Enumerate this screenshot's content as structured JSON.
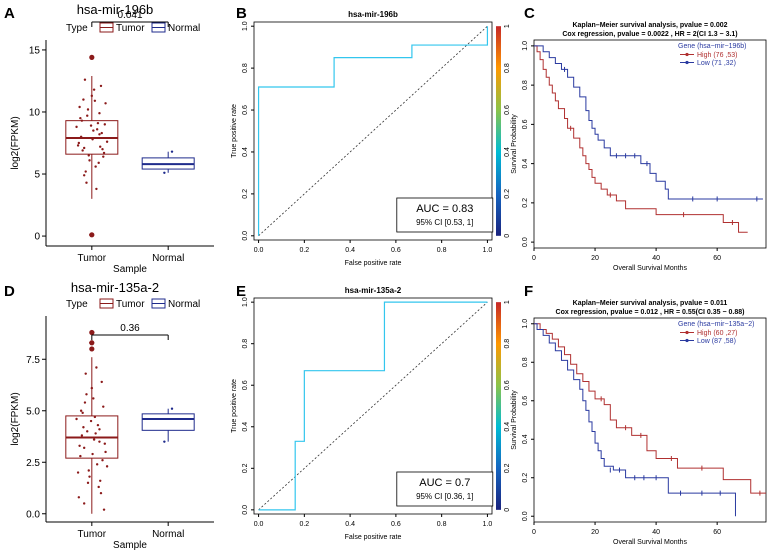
{
  "panel_labels": [
    "A",
    "B",
    "C",
    "D",
    "E",
    "F"
  ],
  "colors": {
    "tumor": "#8b1a1a",
    "normal": "#1f2b8c",
    "km_high": "#b03030",
    "km_low": "#2a3aa0",
    "roc": "#33c6ee",
    "diag": "#333333"
  },
  "chart_data": [
    {
      "panel": "A",
      "type": "box",
      "title": "hsa-mir-196b",
      "legend_title": "Type",
      "legend": [
        "Tumor",
        "Normal"
      ],
      "xlabel": "Sample",
      "ylabel": "log2(FPKM)",
      "categories": [
        "Tumor",
        "Normal"
      ],
      "ylim": [
        -0.8,
        15.8
      ],
      "yticks": [
        0,
        5,
        10,
        15
      ],
      "pvalue": "0.041",
      "boxes": [
        {
          "name": "Tumor",
          "q1": 6.6,
          "median": 7.9,
          "q3": 9.3,
          "whisker_low": 3.0,
          "whisker_high": 12.9,
          "outliers": [
            0.1,
            14.4
          ],
          "points": [
            [
              0.9,
              7.1
            ],
            [
              1.1,
              8.2
            ],
            [
              0.85,
              9.5
            ],
            [
              1.15,
              6.4
            ],
            [
              0.95,
              10.2
            ],
            [
              1.05,
              5.6
            ],
            [
              0.8,
              8.8
            ],
            [
              1.2,
              7.6
            ],
            [
              1.0,
              11.3
            ],
            [
              0.9,
              4.9
            ],
            [
              1.1,
              9.9
            ],
            [
              0.88,
              6.9
            ],
            [
              1.12,
              12.1
            ],
            [
              1.02,
              8.5
            ],
            [
              0.82,
              7.3
            ],
            [
              1.18,
              10.7
            ],
            [
              0.92,
              5.2
            ],
            [
              1.08,
              9.1
            ],
            [
              0.97,
              6.1
            ],
            [
              1.03,
              11.8
            ],
            [
              0.86,
              8.0
            ],
            [
              1.14,
              7.0
            ],
            [
              0.94,
              9.7
            ],
            [
              1.06,
              3.8
            ],
            [
              0.84,
              10.4
            ],
            [
              1.16,
              6.7
            ],
            [
              0.99,
              8.9
            ],
            [
              1.01,
              7.8
            ],
            [
              0.91,
              12.6
            ],
            [
              1.09,
              5.9
            ],
            [
              0.87,
              9.3
            ],
            [
              1.13,
              8.3
            ],
            [
              0.96,
              6.5
            ],
            [
              1.04,
              10.9
            ],
            [
              0.83,
              7.5
            ],
            [
              1.17,
              9.0
            ],
            [
              0.93,
              4.3
            ],
            [
              1.07,
              8.6
            ],
            [
              0.89,
              11.0
            ],
            [
              1.11,
              7.2
            ],
            [
              0.98,
              0.1
            ],
            [
              1.0,
              14.4
            ]
          ]
        },
        {
          "name": "Normal",
          "q1": 5.4,
          "median": 5.8,
          "q3": 6.3,
          "whisker_low": 5.1,
          "whisker_high": 6.8,
          "outliers": [],
          "points": [
            [
              1.95,
              5.1
            ],
            [
              2.05,
              6.8
            ]
          ]
        }
      ]
    },
    {
      "panel": "B",
      "type": "roc",
      "title": "hsa-mir-196b",
      "xlabel": "False positive rate",
      "ylabel": "True positive rate",
      "xticks": [
        0.0,
        0.2,
        0.4,
        0.6,
        0.8,
        1.0
      ],
      "yticks": [
        0.0,
        0.2,
        0.4,
        0.6,
        0.8,
        1.0
      ],
      "colorbar_ticks": [
        0,
        0.2,
        0.4,
        0.6,
        0.8,
        1
      ],
      "auc_text": "AUC = 0.83",
      "ci_text": "95% CI [0.53, 1]",
      "curve": [
        [
          0,
          0
        ],
        [
          0,
          0.71
        ],
        [
          0.33,
          0.71
        ],
        [
          0.33,
          0.85
        ],
        [
          0.67,
          0.85
        ],
        [
          0.67,
          0.91
        ],
        [
          1.0,
          0.91
        ],
        [
          1.0,
          1.0
        ]
      ]
    },
    {
      "panel": "C",
      "type": "km",
      "title": "Kaplan–Meier survival analysis,  pvalue =  0.002",
      "subtitle": "Cox regression,  pvalue =  0.0022 , HR =  2(CI 1.3 − 3.1)",
      "xlabel": "Overall Survival Months",
      "ylabel": "Survival Probability",
      "xlim": [
        0,
        76
      ],
      "xticks": [
        0,
        20,
        40,
        60
      ],
      "yticks": [
        0.0,
        0.2,
        0.4,
        0.6,
        0.8,
        1.0
      ],
      "legend_title": "Gene (hsa−mir−196b)",
      "series": [
        {
          "name": "High (76 ,53)",
          "color_key": "km_high",
          "steps": [
            [
              0,
              1.0
            ],
            [
              1,
              0.97
            ],
            [
              2,
              0.93
            ],
            [
              3,
              0.88
            ],
            [
              4,
              0.84
            ],
            [
              5,
              0.8
            ],
            [
              6,
              0.76
            ],
            [
              7,
              0.72
            ],
            [
              8,
              0.68
            ],
            [
              10,
              0.63
            ],
            [
              11,
              0.58
            ],
            [
              13,
              0.53
            ],
            [
              15,
              0.48
            ],
            [
              16,
              0.44
            ],
            [
              17,
              0.4
            ],
            [
              18,
              0.37
            ],
            [
              19,
              0.33
            ],
            [
              20,
              0.3
            ],
            [
              22,
              0.27
            ],
            [
              24,
              0.24
            ],
            [
              27,
              0.21
            ],
            [
              30,
              0.17
            ],
            [
              40,
              0.14
            ],
            [
              62,
              0.1
            ],
            [
              67,
              0.05
            ],
            [
              70,
              0.05
            ]
          ],
          "censors": [
            [
              12,
              0.58
            ],
            [
              25,
              0.24
            ],
            [
              49,
              0.14
            ],
            [
              65,
              0.1
            ]
          ]
        },
        {
          "name": "Low (71 ,32)",
          "color_key": "km_low",
          "steps": [
            [
              0,
              1.0
            ],
            [
              3,
              0.97
            ],
            [
              5,
              0.94
            ],
            [
              7,
              0.91
            ],
            [
              9,
              0.88
            ],
            [
              11,
              0.84
            ],
            [
              13,
              0.79
            ],
            [
              15,
              0.74
            ],
            [
              17,
              0.67
            ],
            [
              18,
              0.62
            ],
            [
              19,
              0.58
            ],
            [
              20,
              0.55
            ],
            [
              21,
              0.52
            ],
            [
              23,
              0.48
            ],
            [
              25,
              0.44
            ],
            [
              35,
              0.4
            ],
            [
              38,
              0.35
            ],
            [
              40,
              0.31
            ],
            [
              43,
              0.27
            ],
            [
              44,
              0.22
            ],
            [
              75,
              0.22
            ]
          ],
          "censors": [
            [
              10,
              0.88
            ],
            [
              27,
              0.44
            ],
            [
              30,
              0.44
            ],
            [
              33,
              0.44
            ],
            [
              37,
              0.4
            ],
            [
              52,
              0.22
            ],
            [
              60,
              0.22
            ],
            [
              73,
              0.22
            ]
          ]
        }
      ]
    },
    {
      "panel": "D",
      "type": "box",
      "title": "hsa-mir-135a-2",
      "legend_title": "Type",
      "legend": [
        "Tumor",
        "Normal"
      ],
      "xlabel": "Sample",
      "ylabel": "log2(FPKM)",
      "categories": [
        "Tumor",
        "Normal"
      ],
      "ylim": [
        -0.4,
        9.6
      ],
      "yticks": [
        0.0,
        2.5,
        5.0,
        7.5
      ],
      "yticklabels": [
        "0.0",
        "2.5",
        "5.0",
        "7.5"
      ],
      "pvalue": "0.36",
      "boxes": [
        {
          "name": "Tumor",
          "q1": 2.7,
          "median": 3.7,
          "q3": 4.75,
          "whisker_low": 0.0,
          "whisker_high": 7.6,
          "outliers": [
            8.0,
            8.3,
            8.8
          ],
          "points": [
            [
              0.9,
              3.2
            ],
            [
              1.1,
              4.1
            ],
            [
              0.85,
              2.8
            ],
            [
              1.15,
              5.2
            ],
            [
              0.95,
              1.5
            ],
            [
              1.05,
              3.9
            ],
            [
              0.8,
              4.6
            ],
            [
              1.2,
              2.3
            ],
            [
              1.0,
              6.1
            ],
            [
              0.9,
              0.5
            ],
            [
              1.1,
              3.5
            ],
            [
              0.88,
              4.9
            ],
            [
              1.12,
              1.0
            ],
            [
              1.02,
              5.6
            ],
            [
              0.82,
              2.0
            ],
            [
              1.18,
              3.0
            ],
            [
              0.92,
              6.8
            ],
            [
              1.08,
              4.3
            ],
            [
              0.97,
              1.8
            ],
            [
              1.03,
              3.6
            ],
            [
              0.86,
              5.0
            ],
            [
              1.14,
              2.6
            ],
            [
              0.94,
              4.0
            ],
            [
              1.06,
              7.1
            ],
            [
              0.84,
              3.3
            ],
            [
              1.16,
              0.2
            ],
            [
              0.99,
              4.5
            ],
            [
              1.01,
              2.9
            ],
            [
              0.91,
              5.4
            ],
            [
              1.09,
              1.3
            ],
            [
              0.87,
              3.8
            ],
            [
              1.13,
              6.4
            ],
            [
              0.96,
              2.1
            ],
            [
              1.04,
              4.7
            ],
            [
              0.83,
              0.8
            ],
            [
              1.17,
              3.4
            ],
            [
              0.93,
              5.8
            ],
            [
              1.07,
              2.4
            ],
            [
              0.89,
              4.2
            ],
            [
              1.11,
              1.6
            ],
            [
              1.0,
              8.0
            ],
            [
              0.98,
              8.3
            ],
            [
              1.02,
              8.8
            ]
          ]
        },
        {
          "name": "Normal",
          "q1": 4.05,
          "median": 4.6,
          "q3": 4.85,
          "whisker_low": 3.5,
          "whisker_high": 5.1,
          "outliers": [],
          "points": [
            [
              1.95,
              3.5
            ],
            [
              2.05,
              5.1
            ]
          ]
        }
      ]
    },
    {
      "panel": "E",
      "type": "roc",
      "title": "hsa-mir-135a-2",
      "xlabel": "False positive rate",
      "ylabel": "True positive rate",
      "xticks": [
        0.0,
        0.2,
        0.4,
        0.6,
        0.8,
        1.0
      ],
      "yticks": [
        0.0,
        0.2,
        0.4,
        0.6,
        0.8,
        1.0
      ],
      "colorbar_ticks": [
        0,
        0.2,
        0.4,
        0.6,
        0.8,
        1
      ],
      "auc_text": "AUC = 0.7",
      "ci_text": "95% CI [0.36, 1]",
      "curve": [
        [
          0,
          0
        ],
        [
          0.16,
          0
        ],
        [
          0.16,
          0.33
        ],
        [
          0.2,
          0.33
        ],
        [
          0.2,
          0.67
        ],
        [
          0.55,
          0.67
        ],
        [
          0.55,
          1.0
        ],
        [
          1.0,
          1.0
        ]
      ]
    },
    {
      "panel": "F",
      "type": "km",
      "title": "Kaplan–Meier survival analysis,  pvalue =  0.011",
      "subtitle": "Cox regression,  pvalue =  0.012 , HR =  0.55(CI 0.35 − 0.88)",
      "xlabel": "Overall Survival Months",
      "ylabel": "Survival Probability",
      "xlim": [
        0,
        76
      ],
      "xticks": [
        0,
        20,
        40,
        60
      ],
      "yticks": [
        0.0,
        0.2,
        0.4,
        0.6,
        0.8,
        1.0
      ],
      "legend_title": "Gene (hsa−mir−135a−2)",
      "series": [
        {
          "name": "High (60 ,27)",
          "color_key": "km_high",
          "steps": [
            [
              0,
              1.0
            ],
            [
              2,
              0.97
            ],
            [
              4,
              0.95
            ],
            [
              6,
              0.92
            ],
            [
              8,
              0.88
            ],
            [
              10,
              0.84
            ],
            [
              12,
              0.79
            ],
            [
              14,
              0.74
            ],
            [
              16,
              0.7
            ],
            [
              18,
              0.65
            ],
            [
              20,
              0.61
            ],
            [
              23,
              0.58
            ],
            [
              25,
              0.5
            ],
            [
              27,
              0.46
            ],
            [
              32,
              0.42
            ],
            [
              37,
              0.34
            ],
            [
              40,
              0.3
            ],
            [
              47,
              0.25
            ],
            [
              62,
              0.19
            ],
            [
              71,
              0.12
            ],
            [
              76,
              0.12
            ]
          ],
          "censors": [
            [
              22,
              0.61
            ],
            [
              30,
              0.46
            ],
            [
              35,
              0.42
            ],
            [
              45,
              0.3
            ],
            [
              55,
              0.25
            ],
            [
              74,
              0.12
            ]
          ]
        },
        {
          "name": "Low (87 ,58)",
          "color_key": "km_low",
          "steps": [
            [
              0,
              1.0
            ],
            [
              1,
              0.97
            ],
            [
              3,
              0.94
            ],
            [
              5,
              0.9
            ],
            [
              7,
              0.86
            ],
            [
              9,
              0.81
            ],
            [
              11,
              0.76
            ],
            [
              13,
              0.71
            ],
            [
              15,
              0.66
            ],
            [
              16,
              0.6
            ],
            [
              17,
              0.55
            ],
            [
              18,
              0.49
            ],
            [
              19,
              0.44
            ],
            [
              20,
              0.38
            ],
            [
              21,
              0.34
            ],
            [
              22,
              0.3
            ],
            [
              23,
              0.26
            ],
            [
              26,
              0.24
            ],
            [
              30,
              0.2
            ],
            [
              44,
              0.12
            ],
            [
              66,
              0.0
            ]
          ],
          "censors": [
            [
              25,
              0.24
            ],
            [
              28,
              0.24
            ],
            [
              33,
              0.2
            ],
            [
              36,
              0.2
            ],
            [
              40,
              0.2
            ],
            [
              48,
              0.12
            ],
            [
              55,
              0.12
            ],
            [
              61,
              0.12
            ]
          ]
        }
      ]
    }
  ]
}
